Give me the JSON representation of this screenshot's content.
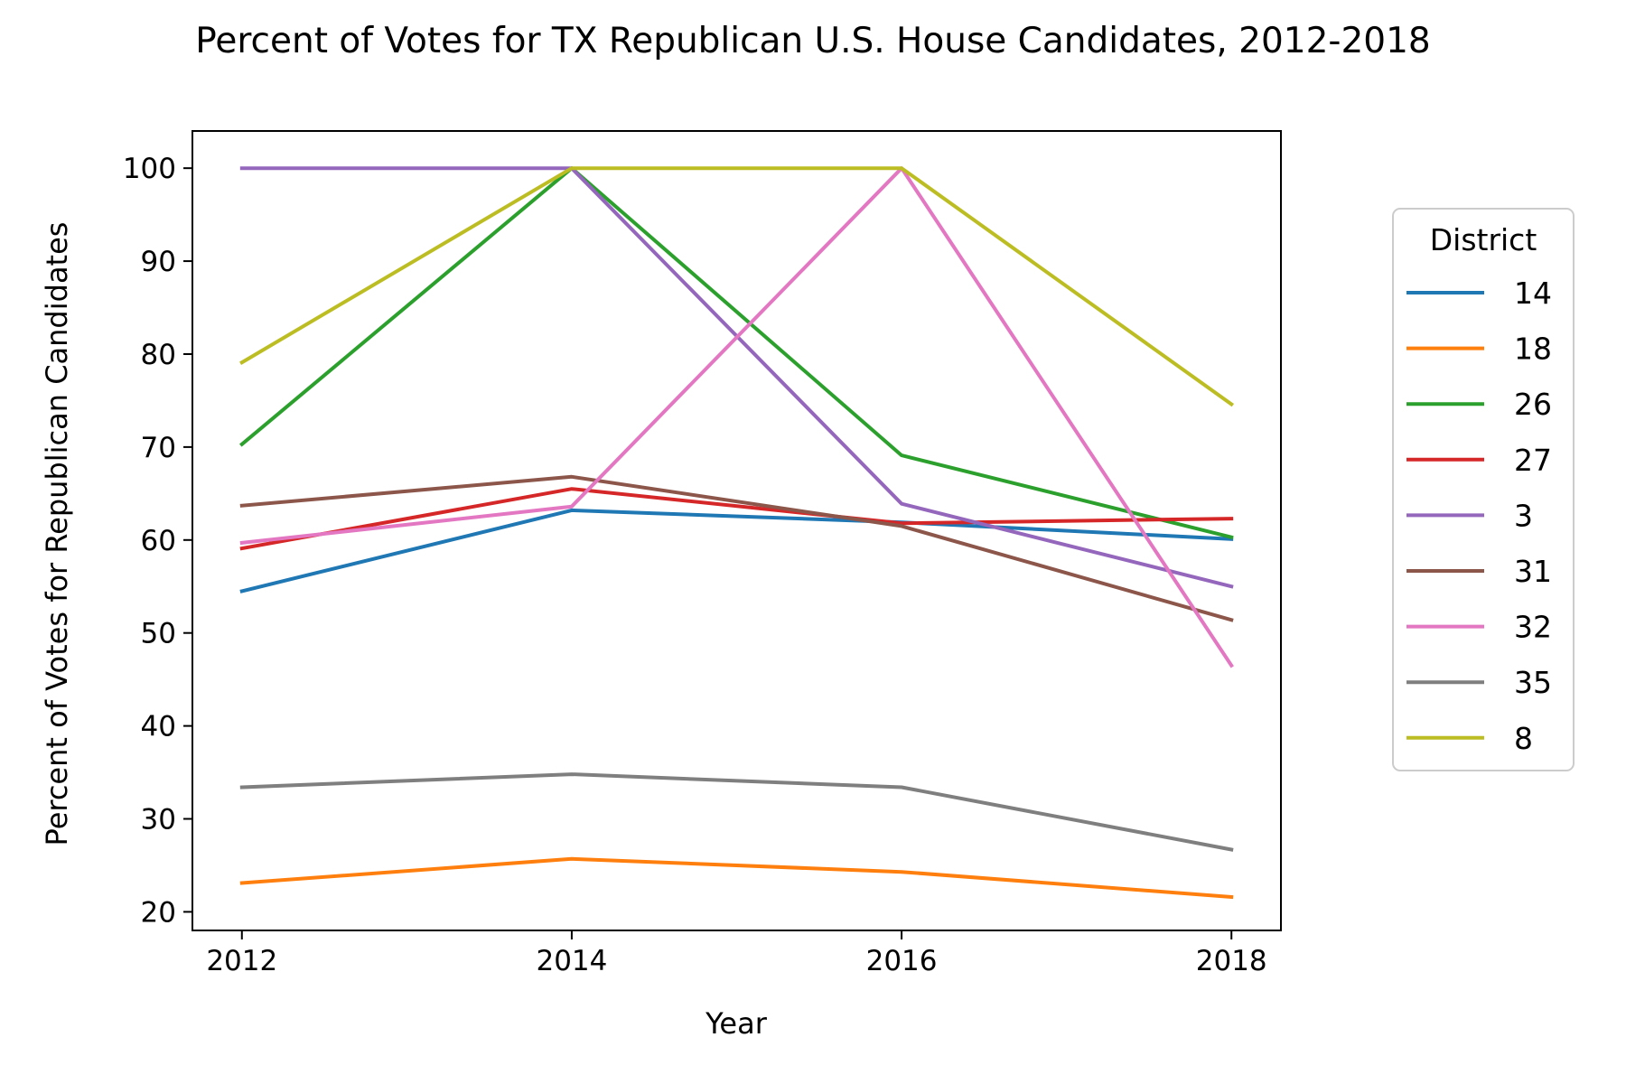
{
  "chart_data": {
    "type": "line",
    "title": "Percent of Votes for TX Republican U.S. House Candidates, 2012-2018",
    "xlabel": "Year",
    "ylabel": "Percent of Votes for Republican Candidates",
    "x": [
      2012,
      2014,
      2016,
      2018
    ],
    "xticks": [
      "2012",
      "2014",
      "2016",
      "2018"
    ],
    "yticks": [
      "20",
      "30",
      "40",
      "50",
      "60",
      "70",
      "80",
      "90",
      "100"
    ],
    "xlim": [
      2011.7,
      2018.3
    ],
    "ylim": [
      18,
      104
    ],
    "grid": false,
    "legend": {
      "title": "District",
      "placement": "outside-right"
    },
    "series": [
      {
        "name": "14",
        "color": "#1f77b4",
        "values": [
          54.5,
          63.2,
          61.9,
          60.1
        ]
      },
      {
        "name": "18",
        "color": "#ff7f0e",
        "values": [
          23.1,
          25.7,
          24.3,
          21.6
        ]
      },
      {
        "name": "26",
        "color": "#2ca02c",
        "values": [
          70.3,
          100,
          69.1,
          60.3
        ]
      },
      {
        "name": "27",
        "color": "#d62728",
        "values": [
          59.1,
          65.5,
          61.8,
          62.3
        ]
      },
      {
        "name": "3",
        "color": "#9467bd",
        "values": [
          100,
          100,
          63.9,
          55.0
        ]
      },
      {
        "name": "31",
        "color": "#8c564b",
        "values": [
          63.7,
          66.8,
          61.5,
          51.4
        ]
      },
      {
        "name": "32",
        "color": "#e377c2",
        "values": [
          59.7,
          63.6,
          100,
          46.5
        ]
      },
      {
        "name": "35",
        "color": "#7f7f7f",
        "values": [
          33.4,
          34.8,
          33.4,
          26.7
        ]
      },
      {
        "name": "8",
        "color": "#bcbd22",
        "values": [
          79.1,
          100,
          100,
          74.6
        ]
      }
    ]
  }
}
